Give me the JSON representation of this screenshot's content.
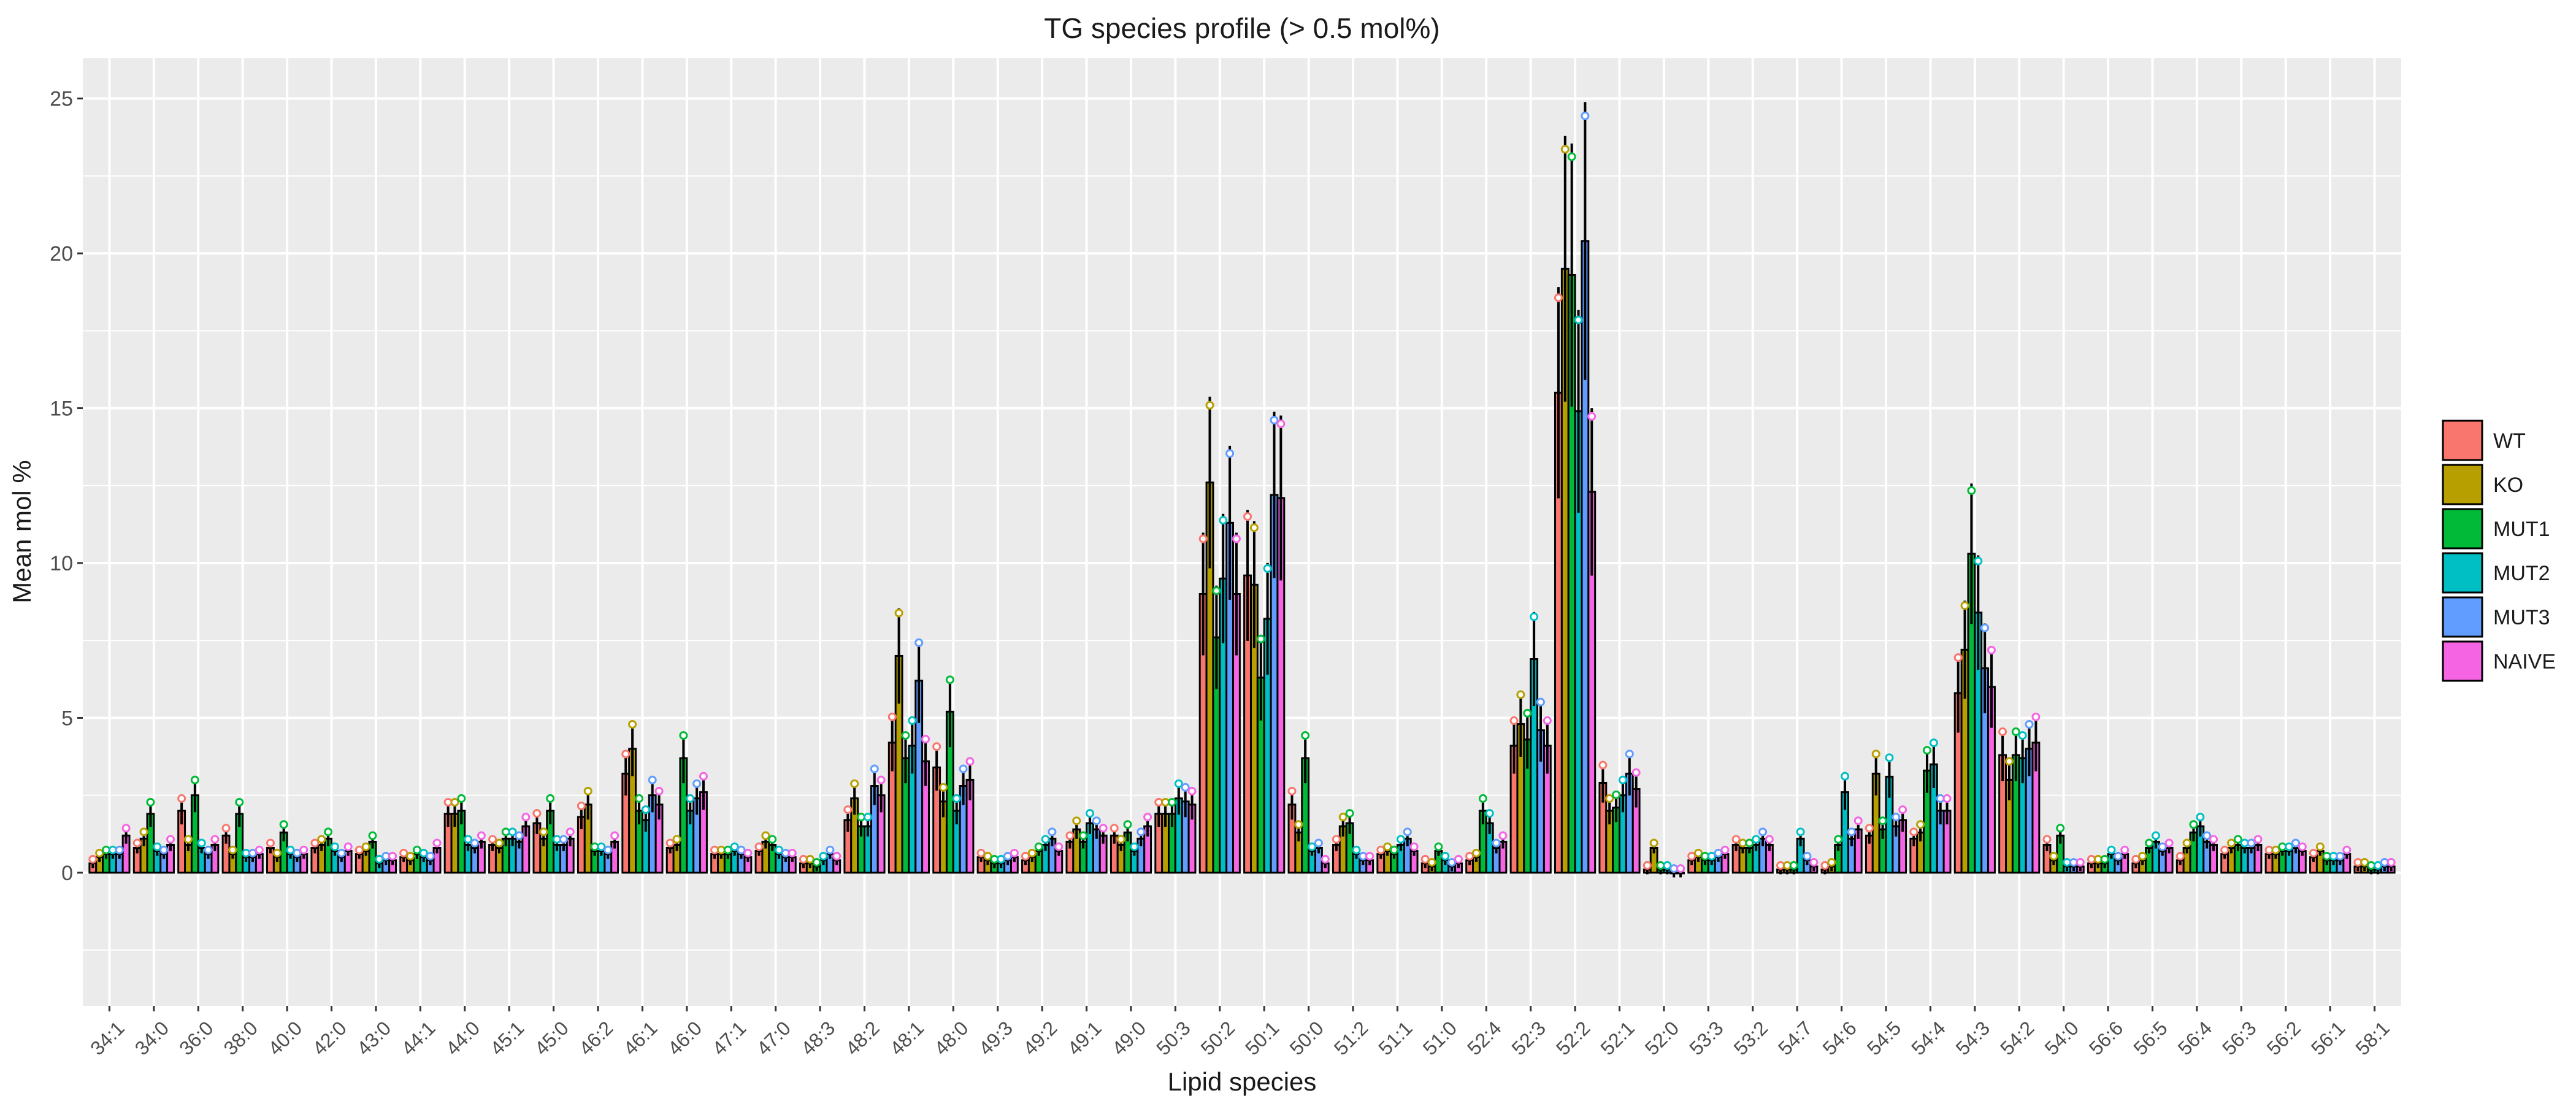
{
  "chart_data": {
    "type": "bar",
    "title": "TG species profile (> 0.5 mol%)",
    "xlabel": "Lipid species",
    "ylabel": "Mean mol %",
    "ylim": [
      -4.3,
      26.3
    ],
    "yticks": [
      0,
      5,
      10,
      15,
      20,
      25
    ],
    "grid": true,
    "legend_position": "right",
    "error_bars": true,
    "points_overlay": true,
    "categories": [
      "34:1",
      "34:0",
      "36:0",
      "38:0",
      "40:0",
      "42:0",
      "43:0",
      "44:1",
      "44:0",
      "45:1",
      "45:0",
      "46:2",
      "46:1",
      "46:0",
      "47:1",
      "47:0",
      "48:3",
      "48:2",
      "48:1",
      "48:0",
      "49:3",
      "49:2",
      "49:1",
      "49:0",
      "50:3",
      "50:2",
      "50:1",
      "50:0",
      "51:2",
      "51:1",
      "51:0",
      "52:4",
      "52:3",
      "52:2",
      "52:1",
      "52:0",
      "53:3",
      "53:2",
      "54:7",
      "54:6",
      "54:5",
      "54:4",
      "54:3",
      "54:2",
      "54:0",
      "56:6",
      "56:5",
      "56:4",
      "56:3",
      "56:2",
      "56:1",
      "58:1"
    ],
    "series": [
      {
        "name": "WT",
        "color": "#F8766D",
        "values": [
          0.3,
          0.8,
          2.0,
          1.2,
          0.8,
          0.8,
          0.6,
          0.5,
          1.9,
          0.9,
          1.6,
          1.8,
          3.2,
          0.8,
          0.6,
          0.7,
          0.3,
          1.7,
          4.2,
          3.4,
          0.5,
          0.4,
          1.0,
          1.2,
          1.9,
          9.0,
          9.6,
          2.2,
          0.9,
          0.6,
          0.3,
          0.4,
          4.1,
          15.5,
          2.9,
          0.1,
          0.4,
          0.9,
          0.1,
          0.1,
          1.2,
          1.1,
          5.8,
          3.8,
          0.9,
          0.3,
          0.3,
          0.4,
          0.6,
          0.6,
          0.5,
          0.2
        ]
      },
      {
        "name": "KO",
        "color": "#B79F00",
        "values": [
          0.5,
          1.1,
          0.9,
          0.6,
          0.5,
          0.9,
          0.7,
          0.4,
          1.9,
          0.8,
          1.1,
          2.2,
          4.0,
          0.9,
          0.6,
          1.0,
          0.3,
          2.4,
          7.0,
          2.3,
          0.4,
          0.5,
          1.4,
          0.9,
          1.9,
          12.6,
          9.3,
          1.3,
          1.5,
          0.7,
          0.2,
          0.5,
          4.8,
          19.5,
          2.0,
          0.8,
          0.5,
          0.8,
          0.1,
          0.2,
          3.2,
          1.3,
          7.2,
          3.0,
          0.4,
          0.3,
          0.4,
          0.8,
          0.8,
          0.6,
          0.7,
          0.2
        ]
      },
      {
        "name": "MUT1",
        "color": "#00BA38",
        "values": [
          0.6,
          1.9,
          2.5,
          1.9,
          1.3,
          1.1,
          1.0,
          0.6,
          2.0,
          1.1,
          2.0,
          0.7,
          2.0,
          3.7,
          0.6,
          0.9,
          0.2,
          1.5,
          3.7,
          5.2,
          0.3,
          0.7,
          1.0,
          1.3,
          1.9,
          7.6,
          6.3,
          3.7,
          1.6,
          0.6,
          0.7,
          2.0,
          4.3,
          19.3,
          2.1,
          0.1,
          0.4,
          0.8,
          0.1,
          0.9,
          1.4,
          3.3,
          10.3,
          3.8,
          1.2,
          0.3,
          0.8,
          1.3,
          0.9,
          0.7,
          0.4,
          0.1
        ]
      },
      {
        "name": "MUT2",
        "color": "#00BFC4",
        "values": [
          0.6,
          0.7,
          0.8,
          0.5,
          0.6,
          0.7,
          0.3,
          0.5,
          0.9,
          1.1,
          0.9,
          0.7,
          1.7,
          2.0,
          0.7,
          0.6,
          0.4,
          1.5,
          4.1,
          2.0,
          0.3,
          0.9,
          1.6,
          0.7,
          2.4,
          9.5,
          8.2,
          0.7,
          0.6,
          0.9,
          0.4,
          1.6,
          6.9,
          14.9,
          2.5,
          0.1,
          0.4,
          0.9,
          1.1,
          2.6,
          3.1,
          3.5,
          8.4,
          3.7,
          0.2,
          0.6,
          1.0,
          1.5,
          0.8,
          0.7,
          0.4,
          0.1
        ]
      },
      {
        "name": "MUT3",
        "color": "#619CFF",
        "values": [
          0.6,
          0.6,
          0.6,
          0.5,
          0.5,
          0.5,
          0.4,
          0.4,
          0.8,
          1.0,
          0.9,
          0.6,
          2.5,
          2.4,
          0.6,
          0.5,
          0.6,
          2.8,
          6.2,
          2.8,
          0.4,
          1.1,
          1.4,
          1.1,
          2.3,
          11.3,
          12.2,
          0.8,
          0.4,
          1.1,
          0.2,
          0.8,
          4.6,
          20.4,
          3.2,
          0.0,
          0.5,
          1.1,
          0.4,
          1.1,
          1.5,
          2.0,
          6.6,
          4.0,
          0.2,
          0.4,
          0.7,
          1.0,
          0.8,
          0.8,
          0.4,
          0.2
        ]
      },
      {
        "name": "NAIVE",
        "color": "#F564E3",
        "values": [
          1.2,
          0.9,
          0.9,
          0.6,
          0.6,
          0.7,
          0.4,
          0.8,
          1.0,
          1.5,
          1.1,
          1.0,
          2.2,
          2.6,
          0.5,
          0.5,
          0.4,
          2.5,
          3.6,
          3.0,
          0.5,
          0.7,
          1.2,
          1.5,
          2.2,
          9.0,
          12.1,
          0.3,
          0.4,
          0.7,
          0.3,
          1.0,
          4.1,
          12.3,
          2.7,
          0.0,
          0.6,
          0.9,
          0.2,
          1.4,
          1.7,
          2.0,
          6.0,
          4.2,
          0.2,
          0.6,
          0.8,
          0.9,
          0.9,
          0.7,
          0.6,
          0.2
        ]
      }
    ]
  }
}
